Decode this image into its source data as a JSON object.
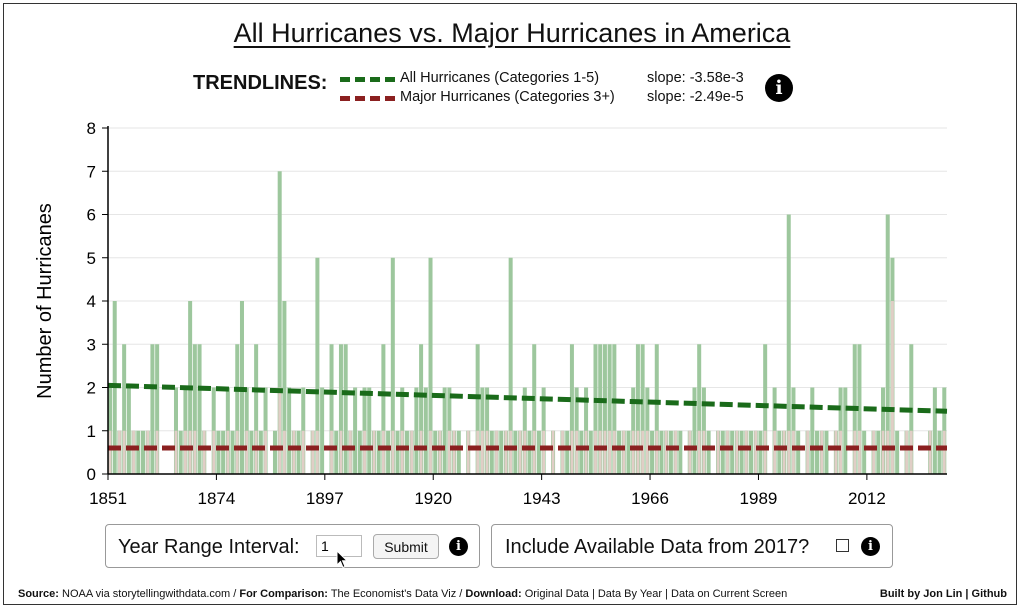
{
  "title": "All Hurricanes vs. Major Hurricanes in America",
  "legend": {
    "heading": "TRENDLINES:",
    "all_label": "All Hurricanes (Categories 1-5)",
    "all_slope": "slope: -3.58e-3",
    "major_label": "Major Hurricanes (Categories 3+)",
    "major_slope": "slope: -2.49e-5",
    "all_color": "#1a6b1a",
    "major_color": "#8b2020"
  },
  "controls": {
    "interval_label": "Year Range Interval:",
    "interval_value": "1",
    "submit_label": "Submit",
    "include_label": "Include Available Data from 2017?"
  },
  "footer": {
    "source_k": "Source:",
    "source_v": "NOAA via storytellingwithdata.com /",
    "compare_k": "For Comparison:",
    "compare_v": "The Economist's Data Viz /",
    "download_k": "Download:",
    "download_v": "Original Data | Data By Year | Data on Current Screen",
    "built": "Built by Jon Lin | Github"
  },
  "chart_data": {
    "type": "bar",
    "title": "All Hurricanes vs. Major Hurricanes in America",
    "xlabel": "",
    "ylabel": "Number of Hurricanes",
    "ylim": [
      0,
      8
    ],
    "yticks": [
      "0",
      "1",
      "2",
      "3",
      "4",
      "5",
      "6",
      "7",
      "8"
    ],
    "xticks": [
      "1851",
      "1874",
      "1897",
      "1920",
      "1943",
      "1966",
      "1989",
      "2012"
    ],
    "x_start": 1851,
    "x_end": 2016,
    "series": [
      {
        "name": "All Hurricanes (Categories 1-5)",
        "color": "#9dc79d",
        "values": [
          2,
          4,
          1,
          3,
          2,
          1,
          1,
          1,
          1,
          3,
          3,
          0,
          0,
          0,
          2,
          1,
          2,
          4,
          3,
          3,
          1,
          0,
          2,
          1,
          1,
          2,
          1,
          3,
          4,
          2,
          1,
          3,
          1,
          2,
          0,
          1,
          7,
          4,
          2,
          1,
          1,
          2,
          0,
          1,
          5,
          2,
          0,
          3,
          1,
          3,
          3,
          1,
          2,
          1,
          2,
          2,
          1,
          1,
          3,
          1,
          5,
          1,
          2,
          1,
          1,
          2,
          3,
          2,
          5,
          1,
          1,
          2,
          2,
          1,
          1,
          0,
          1,
          0,
          3,
          2,
          2,
          1,
          1,
          1,
          1,
          5,
          1,
          1,
          2,
          1,
          3,
          1,
          2,
          0,
          1,
          0,
          1,
          1,
          3,
          2,
          1,
          2,
          1,
          3,
          3,
          3,
          3,
          3,
          1,
          1,
          1,
          2,
          3,
          3,
          2,
          1,
          3,
          1,
          1,
          1,
          1,
          1,
          0,
          1,
          2,
          3,
          2,
          1,
          0,
          1,
          1,
          1,
          1,
          1,
          1,
          1,
          1,
          1,
          1,
          3,
          0,
          2,
          1,
          1,
          6,
          2,
          1,
          0,
          1,
          2,
          1,
          1,
          1,
          0,
          1,
          2,
          2,
          0,
          3,
          3,
          1,
          0,
          1,
          1,
          2,
          6,
          5,
          1,
          0,
          1,
          3,
          0,
          0,
          0,
          1,
          2,
          1,
          2
        ]
      },
      {
        "name": "Major Hurricanes (Categories 3+)",
        "color": "#e0cec6",
        "values": [
          1,
          0,
          1,
          1,
          0,
          1,
          0,
          0,
          1,
          0,
          1,
          0,
          0,
          0,
          1,
          0,
          1,
          1,
          1,
          0,
          1,
          0,
          1,
          0,
          0,
          1,
          0,
          1,
          0,
          1,
          0,
          1,
          0,
          1,
          0,
          0,
          2,
          1,
          0,
          1,
          0,
          1,
          0,
          1,
          1,
          0,
          0,
          1,
          0,
          1,
          0,
          1,
          0,
          0,
          1,
          0,
          1,
          0,
          1,
          0,
          1,
          0,
          1,
          0,
          1,
          0,
          1,
          0,
          1,
          0,
          1,
          0,
          1,
          1,
          0,
          0,
          1,
          0,
          1,
          1,
          1,
          0,
          1,
          0,
          1,
          1,
          0,
          1,
          1,
          0,
          1,
          0,
          1,
          0,
          1,
          0,
          1,
          0,
          1,
          1,
          0,
          1,
          0,
          1,
          1,
          1,
          1,
          1,
          0,
          1,
          0,
          1,
          1,
          1,
          1,
          0,
          1,
          0,
          1,
          0,
          1,
          0,
          0,
          1,
          0,
          1,
          1,
          0,
          0,
          1,
          0,
          1,
          0,
          1,
          0,
          1,
          0,
          1,
          0,
          1,
          0,
          1,
          0,
          1,
          1,
          1,
          0,
          0,
          1,
          0,
          0,
          1,
          0,
          0,
          1,
          1,
          0,
          0,
          1,
          1,
          0,
          0,
          1,
          0,
          1,
          1,
          4,
          0,
          0,
          1,
          1,
          0,
          0,
          0,
          1,
          0,
          0,
          1
        ]
      }
    ],
    "trendlines": [
      {
        "name": "All Hurricanes",
        "y_start": 2.05,
        "y_end": 1.45
      },
      {
        "name": "Major Hurricanes",
        "y_start": 0.6,
        "y_end": 0.6
      }
    ]
  }
}
